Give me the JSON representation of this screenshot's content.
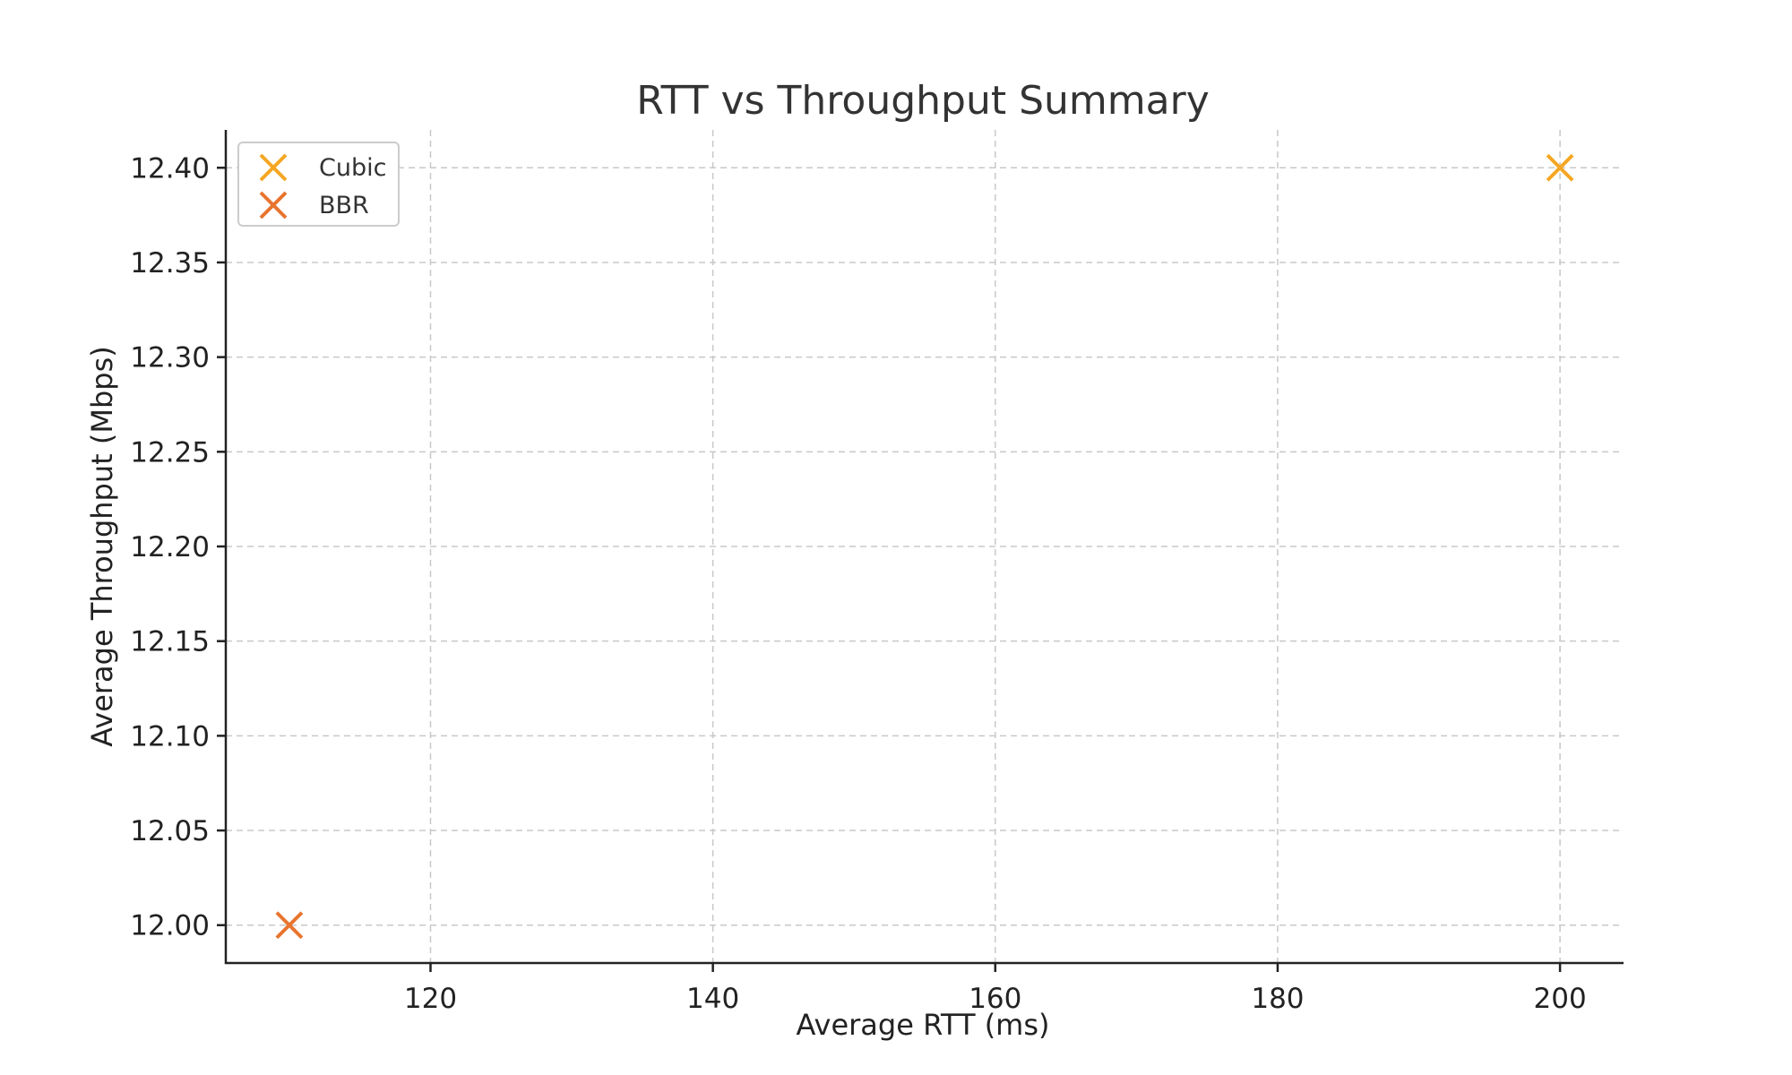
{
  "chart_data": {
    "type": "scatter",
    "title": "RTT vs Throughput Summary",
    "xlabel": "Average RTT (ms)",
    "ylabel": "Average Throughput (Mbps)",
    "xlim": [
      105.5,
      204.5
    ],
    "ylim": [
      11.98,
      12.42
    ],
    "xticks": [
      120,
      140,
      160,
      180,
      200
    ],
    "yticks": [
      12.0,
      12.05,
      12.1,
      12.15,
      12.2,
      12.25,
      12.3,
      12.35,
      12.4
    ],
    "ytick_decimals": 2,
    "grid": true,
    "legend_position": "top-left",
    "marker": "x",
    "series": [
      {
        "name": "Cubic",
        "color": "#f5a623",
        "points": [
          {
            "x": 200,
            "y": 12.4
          }
        ]
      },
      {
        "name": "BBR",
        "color": "#e8742e",
        "points": [
          {
            "x": 110,
            "y": 12.0
          }
        ]
      }
    ]
  }
}
